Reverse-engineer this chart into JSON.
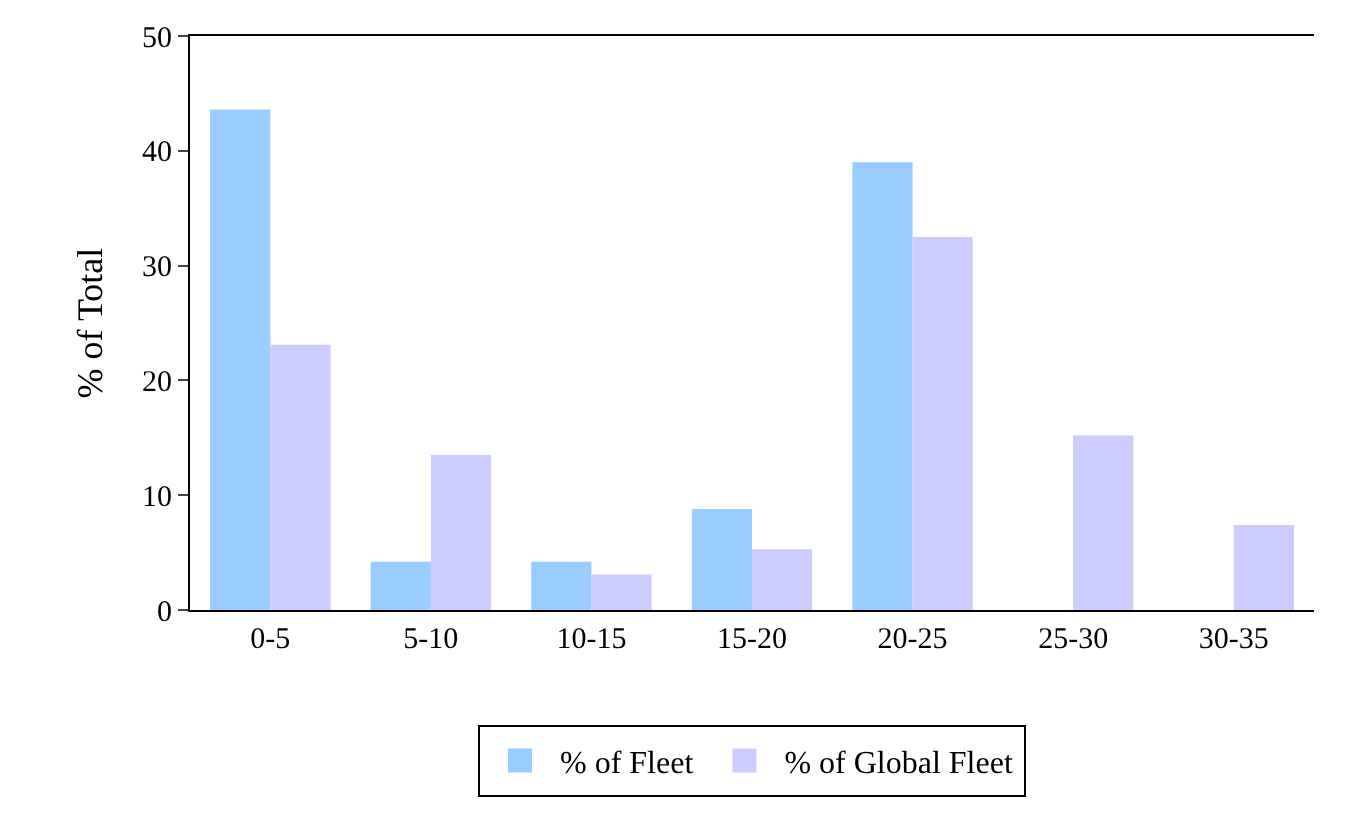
{
  "chart_data": {
    "type": "bar",
    "ylabel": "% of Total",
    "categories": [
      "0-5",
      "5-10",
      "10-15",
      "15-20",
      "20-25",
      "25-30",
      "30-35"
    ],
    "series": [
      {
        "name": "% of Fleet",
        "color": "#99ccff",
        "values": [
          43.6,
          4.2,
          4.2,
          8.8,
          39.0,
          0,
          0
        ]
      },
      {
        "name": "% of Global Fleet",
        "color": "#ccccff",
        "values": [
          23.1,
          13.5,
          3.1,
          5.3,
          32.5,
          15.2,
          7.4
        ]
      }
    ],
    "ylim": [
      0,
      50
    ],
    "yticks": [
      0,
      10,
      20,
      30,
      40,
      50
    ],
    "legend": "bottom"
  }
}
